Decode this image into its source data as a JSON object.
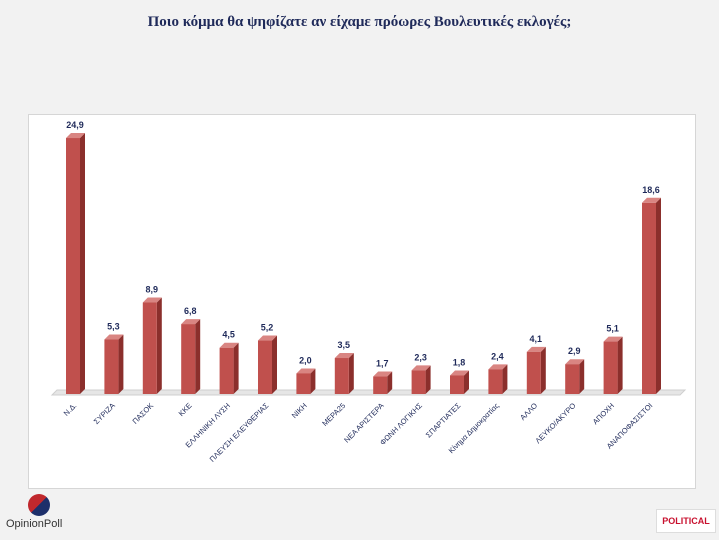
{
  "chart_data": {
    "type": "bar",
    "title": "Ποιο κόμμα θα ψηφίζατε αν είχαμε πρόωρες Βουλευτικές εκλογές;",
    "categories": [
      "Ν.Δ.",
      "ΣΥΡΙΖΑ",
      "ΠΑΣΟΚ",
      "ΚΚΕ",
      "ΕΛΛΗΝΙΚΗ ΛΥΣΗ",
      "ΠΛΕΥΣΗ ΕΛΕΥΘΕΡΙΑΣ",
      "ΝΙΚΗ",
      "ΜΕΡΑ25",
      "ΝΕΑ ΑΡΙΣΤΕΡΑ",
      "ΦΩΝΗ ΛΟΓΙΚΗΣ",
      "ΣΠΑΡΤΙΑΤΕΣ",
      "Κίνημα Δημοκρατίας",
      "ΑΛΛΟ",
      "ΛΕΥΚΟ/ΑΚΥΡΟ",
      "ΑΠΟΧΗ",
      "ΑΝΑΠΟΦΑΣΙΣΤΟΙ"
    ],
    "values": [
      24.9,
      5.3,
      8.9,
      6.8,
      4.5,
      5.2,
      2.0,
      3.5,
      1.7,
      2.3,
      1.8,
      2.4,
      4.1,
      2.9,
      5.1,
      18.6
    ],
    "value_labels": [
      "24,9",
      "5,3",
      "8,9",
      "6,8",
      "4,5",
      "5,2",
      "2,0",
      "3,5",
      "1,7",
      "2,3",
      "1,8",
      "2,4",
      "4,1",
      "2,9",
      "5,1",
      "18,6"
    ],
    "ylim": [
      0,
      25
    ],
    "grid": false,
    "legend": "none",
    "bar_color": "#c0504d"
  },
  "logos": {
    "left": "OpinionPoll",
    "right": "POLITICAL"
  }
}
